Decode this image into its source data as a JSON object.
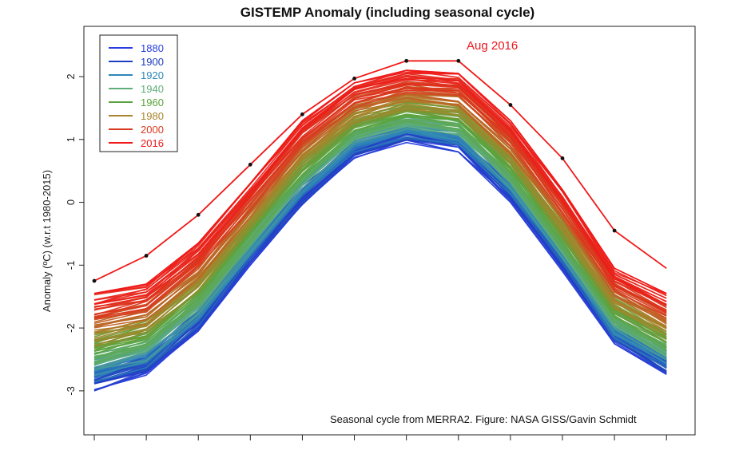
{
  "chart_data": {
    "type": "line",
    "title": "GISTEMP Anomaly (including seasonal cycle)",
    "ylabel": "Anomaly (ºC) (w.r.t 1980-2015)",
    "xlabel": "",
    "x": [
      1,
      2,
      3,
      4,
      5,
      6,
      7,
      8,
      9,
      10,
      11,
      12
    ],
    "xlim": [
      0.8,
      12.55
    ],
    "ylim": [
      -3.7,
      2.8
    ],
    "yticks": [
      -3,
      -2,
      -1,
      0,
      1,
      2
    ],
    "ytick_labels": [
      "-3",
      "-2",
      "-1",
      "0",
      "1",
      "2"
    ],
    "grid": false,
    "legend_position": "top-left",
    "legend": [
      {
        "label": "1880",
        "color": "#2a3ee0"
      },
      {
        "label": "1900",
        "color": "#1f3dbf"
      },
      {
        "label": "1920",
        "color": "#2e86b8"
      },
      {
        "label": "1940",
        "color": "#5fae7a"
      },
      {
        "label": "1960",
        "color": "#5aa33c"
      },
      {
        "label": "1980",
        "color": "#a8842a"
      },
      {
        "label": "2000",
        "color": "#d93a1f"
      },
      {
        "label": "2016",
        "color": "#f01818"
      }
    ],
    "envelope": {
      "base_curve": [
        -2.3,
        -2.15,
        -1.3,
        -0.4,
        0.55,
        1.2,
        1.45,
        1.3,
        0.5,
        -0.7,
        -1.85,
        -2.25
      ],
      "year_start": 1880,
      "year_end": 2016,
      "min_curve": [
        -3.0,
        -2.75,
        -2.05,
        -1.0,
        -0.05,
        0.7,
        0.95,
        0.8,
        0.0,
        -1.1,
        -2.25,
        -2.75
      ],
      "max_curve": [
        -1.45,
        -1.3,
        -0.65,
        0.3,
        1.3,
        1.9,
        2.1,
        2.05,
        1.3,
        0.2,
        -1.05,
        -1.45
      ]
    },
    "series_2016": {
      "name": "2016",
      "color": "#f01818",
      "values": [
        -1.25,
        -0.85,
        -0.2,
        0.6,
        1.4,
        1.97,
        2.25,
        2.25,
        1.55,
        0.7,
        -0.45,
        -1.05
      ]
    },
    "annotations": [
      {
        "text": "Aug 2016",
        "color": "#e8191f"
      },
      {
        "text": "Seasonal cycle from MERRA2. Figure: NASA GISS/Gavin Schmidt",
        "color": "#111111"
      }
    ]
  }
}
